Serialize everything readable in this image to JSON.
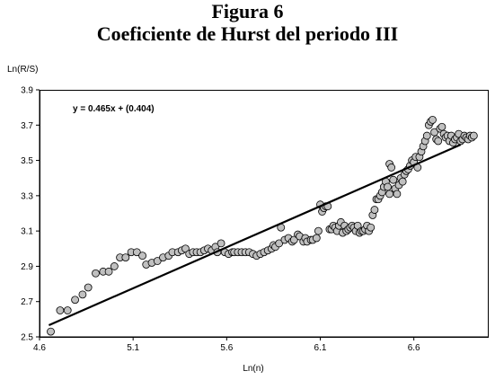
{
  "figure": {
    "title": "Figura 6",
    "subtitle": "Coeficiente de Hurst del periodo III"
  },
  "chart_data": {
    "type": "scatter",
    "ylabel": "Ln(R/S)",
    "xlabel": "Ln(n)",
    "xlim": [
      4.6,
      7.0
    ],
    "ylim": [
      2.5,
      3.9
    ],
    "xticks": [
      "4.6",
      "5.1",
      "5.6",
      "6.1",
      "6.6"
    ],
    "xtick_values": [
      4.6,
      5.1,
      5.6,
      6.1,
      6.6
    ],
    "yticks": [
      "2.5",
      "2.7",
      "2.9",
      "3.1",
      "3.3",
      "3.5",
      "3.7",
      "3.9"
    ],
    "ytick_values": [
      2.5,
      2.7,
      2.9,
      3.1,
      3.3,
      3.5,
      3.7,
      3.9
    ],
    "grid": false,
    "trendline": {
      "label": "y = 0.465x + (0.404)",
      "slope": 0.465,
      "intercept": 0.404,
      "x_range": [
        4.65,
        6.85
      ]
    },
    "colors": {
      "marker_fill": "#c0c0c0",
      "marker_edge": "#000000",
      "line": "#000000"
    },
    "points": [
      [
        4.66,
        2.53
      ],
      [
        4.71,
        2.65
      ],
      [
        4.75,
        2.65
      ],
      [
        4.79,
        2.71
      ],
      [
        4.83,
        2.74
      ],
      [
        4.86,
        2.78
      ],
      [
        4.9,
        2.86
      ],
      [
        4.94,
        2.87
      ],
      [
        4.97,
        2.87
      ],
      [
        5.0,
        2.9
      ],
      [
        5.03,
        2.95
      ],
      [
        5.06,
        2.95
      ],
      [
        5.09,
        2.98
      ],
      [
        5.12,
        2.98
      ],
      [
        5.15,
        2.96
      ],
      [
        5.17,
        2.91
      ],
      [
        5.2,
        2.92
      ],
      [
        5.23,
        2.93
      ],
      [
        5.26,
        2.95
      ],
      [
        5.29,
        2.96
      ],
      [
        5.31,
        2.98
      ],
      [
        5.34,
        2.98
      ],
      [
        5.36,
        2.99
      ],
      [
        5.38,
        3.0
      ],
      [
        5.4,
        2.97
      ],
      [
        5.42,
        2.98
      ],
      [
        5.44,
        2.98
      ],
      [
        5.46,
        2.98
      ],
      [
        5.48,
        2.99
      ],
      [
        5.5,
        3.0
      ],
      [
        5.52,
        2.99
      ],
      [
        5.54,
        3.01
      ],
      [
        5.55,
        2.98
      ],
      [
        5.57,
        3.03
      ],
      [
        5.59,
        2.98
      ],
      [
        5.61,
        2.97
      ],
      [
        5.63,
        2.98
      ],
      [
        5.64,
        2.98
      ],
      [
        5.66,
        2.98
      ],
      [
        5.68,
        2.98
      ],
      [
        5.7,
        2.98
      ],
      [
        5.72,
        2.98
      ],
      [
        5.74,
        2.97
      ],
      [
        5.76,
        2.96
      ],
      [
        5.78,
        2.97
      ],
      [
        5.8,
        2.98
      ],
      [
        5.82,
        2.99
      ],
      [
        5.84,
        3.0
      ],
      [
        5.85,
        3.02
      ],
      [
        5.86,
        3.01
      ],
      [
        5.88,
        3.03
      ],
      [
        5.89,
        3.12
      ],
      [
        5.91,
        3.05
      ],
      [
        5.93,
        3.06
      ],
      [
        5.95,
        3.04
      ],
      [
        5.96,
        3.05
      ],
      [
        5.98,
        3.08
      ],
      [
        5.99,
        3.07
      ],
      [
        6.01,
        3.04
      ],
      [
        6.02,
        3.06
      ],
      [
        6.03,
        3.04
      ],
      [
        6.05,
        3.05
      ],
      [
        6.06,
        3.05
      ],
      [
        6.08,
        3.06
      ],
      [
        6.09,
        3.1
      ],
      [
        6.1,
        3.25
      ],
      [
        6.11,
        3.21
      ],
      [
        6.12,
        3.23
      ],
      [
        6.13,
        3.24
      ],
      [
        6.14,
        3.24
      ],
      [
        6.15,
        3.11
      ],
      [
        6.16,
        3.11
      ],
      [
        6.17,
        3.13
      ],
      [
        6.18,
        3.12
      ],
      [
        6.19,
        3.1
      ],
      [
        6.2,
        3.13
      ],
      [
        6.21,
        3.15
      ],
      [
        6.22,
        3.09
      ],
      [
        6.23,
        3.13
      ],
      [
        6.24,
        3.1
      ],
      [
        6.25,
        3.11
      ],
      [
        6.26,
        3.12
      ],
      [
        6.27,
        3.13
      ],
      [
        6.28,
        3.12
      ],
      [
        6.29,
        3.1
      ],
      [
        6.3,
        3.13
      ],
      [
        6.31,
        3.09
      ],
      [
        6.32,
        3.1
      ],
      [
        6.33,
        3.1
      ],
      [
        6.34,
        3.11
      ],
      [
        6.35,
        3.13
      ],
      [
        6.36,
        3.1
      ],
      [
        6.37,
        3.12
      ],
      [
        6.38,
        3.19
      ],
      [
        6.39,
        3.22
      ],
      [
        6.4,
        3.28
      ],
      [
        6.41,
        3.28
      ],
      [
        6.42,
        3.3
      ],
      [
        6.43,
        3.32
      ],
      [
        6.44,
        3.35
      ],
      [
        6.45,
        3.38
      ],
      [
        6.46,
        3.35
      ],
      [
        6.47,
        3.31
      ],
      [
        6.47,
        3.48
      ],
      [
        6.48,
        3.46
      ],
      [
        6.49,
        3.39
      ],
      [
        6.5,
        3.34
      ],
      [
        6.51,
        3.31
      ],
      [
        6.52,
        3.36
      ],
      [
        6.53,
        3.4
      ],
      [
        6.54,
        3.38
      ],
      [
        6.55,
        3.42
      ],
      [
        6.56,
        3.44
      ],
      [
        6.57,
        3.45
      ],
      [
        6.58,
        3.47
      ],
      [
        6.59,
        3.5
      ],
      [
        6.6,
        3.49
      ],
      [
        6.61,
        3.52
      ],
      [
        6.62,
        3.46
      ],
      [
        6.63,
        3.52
      ],
      [
        6.64,
        3.55
      ],
      [
        6.65,
        3.58
      ],
      [
        6.66,
        3.61
      ],
      [
        6.67,
        3.64
      ],
      [
        6.68,
        3.7
      ],
      [
        6.69,
        3.72
      ],
      [
        6.7,
        3.73
      ],
      [
        6.71,
        3.66
      ],
      [
        6.72,
        3.62
      ],
      [
        6.73,
        3.61
      ],
      [
        6.74,
        3.68
      ],
      [
        6.75,
        3.69
      ],
      [
        6.76,
        3.65
      ],
      [
        6.77,
        3.63
      ],
      [
        6.78,
        3.64
      ],
      [
        6.79,
        3.61
      ],
      [
        6.8,
        3.64
      ],
      [
        6.81,
        3.6
      ],
      [
        6.82,
        3.62
      ],
      [
        6.83,
        3.63
      ],
      [
        6.84,
        3.65
      ],
      [
        6.85,
        3.61
      ],
      [
        6.86,
        3.62
      ],
      [
        6.87,
        3.64
      ],
      [
        6.88,
        3.63
      ],
      [
        6.89,
        3.62
      ],
      [
        6.9,
        3.64
      ],
      [
        6.91,
        3.63
      ],
      [
        6.92,
        3.64
      ]
    ]
  }
}
